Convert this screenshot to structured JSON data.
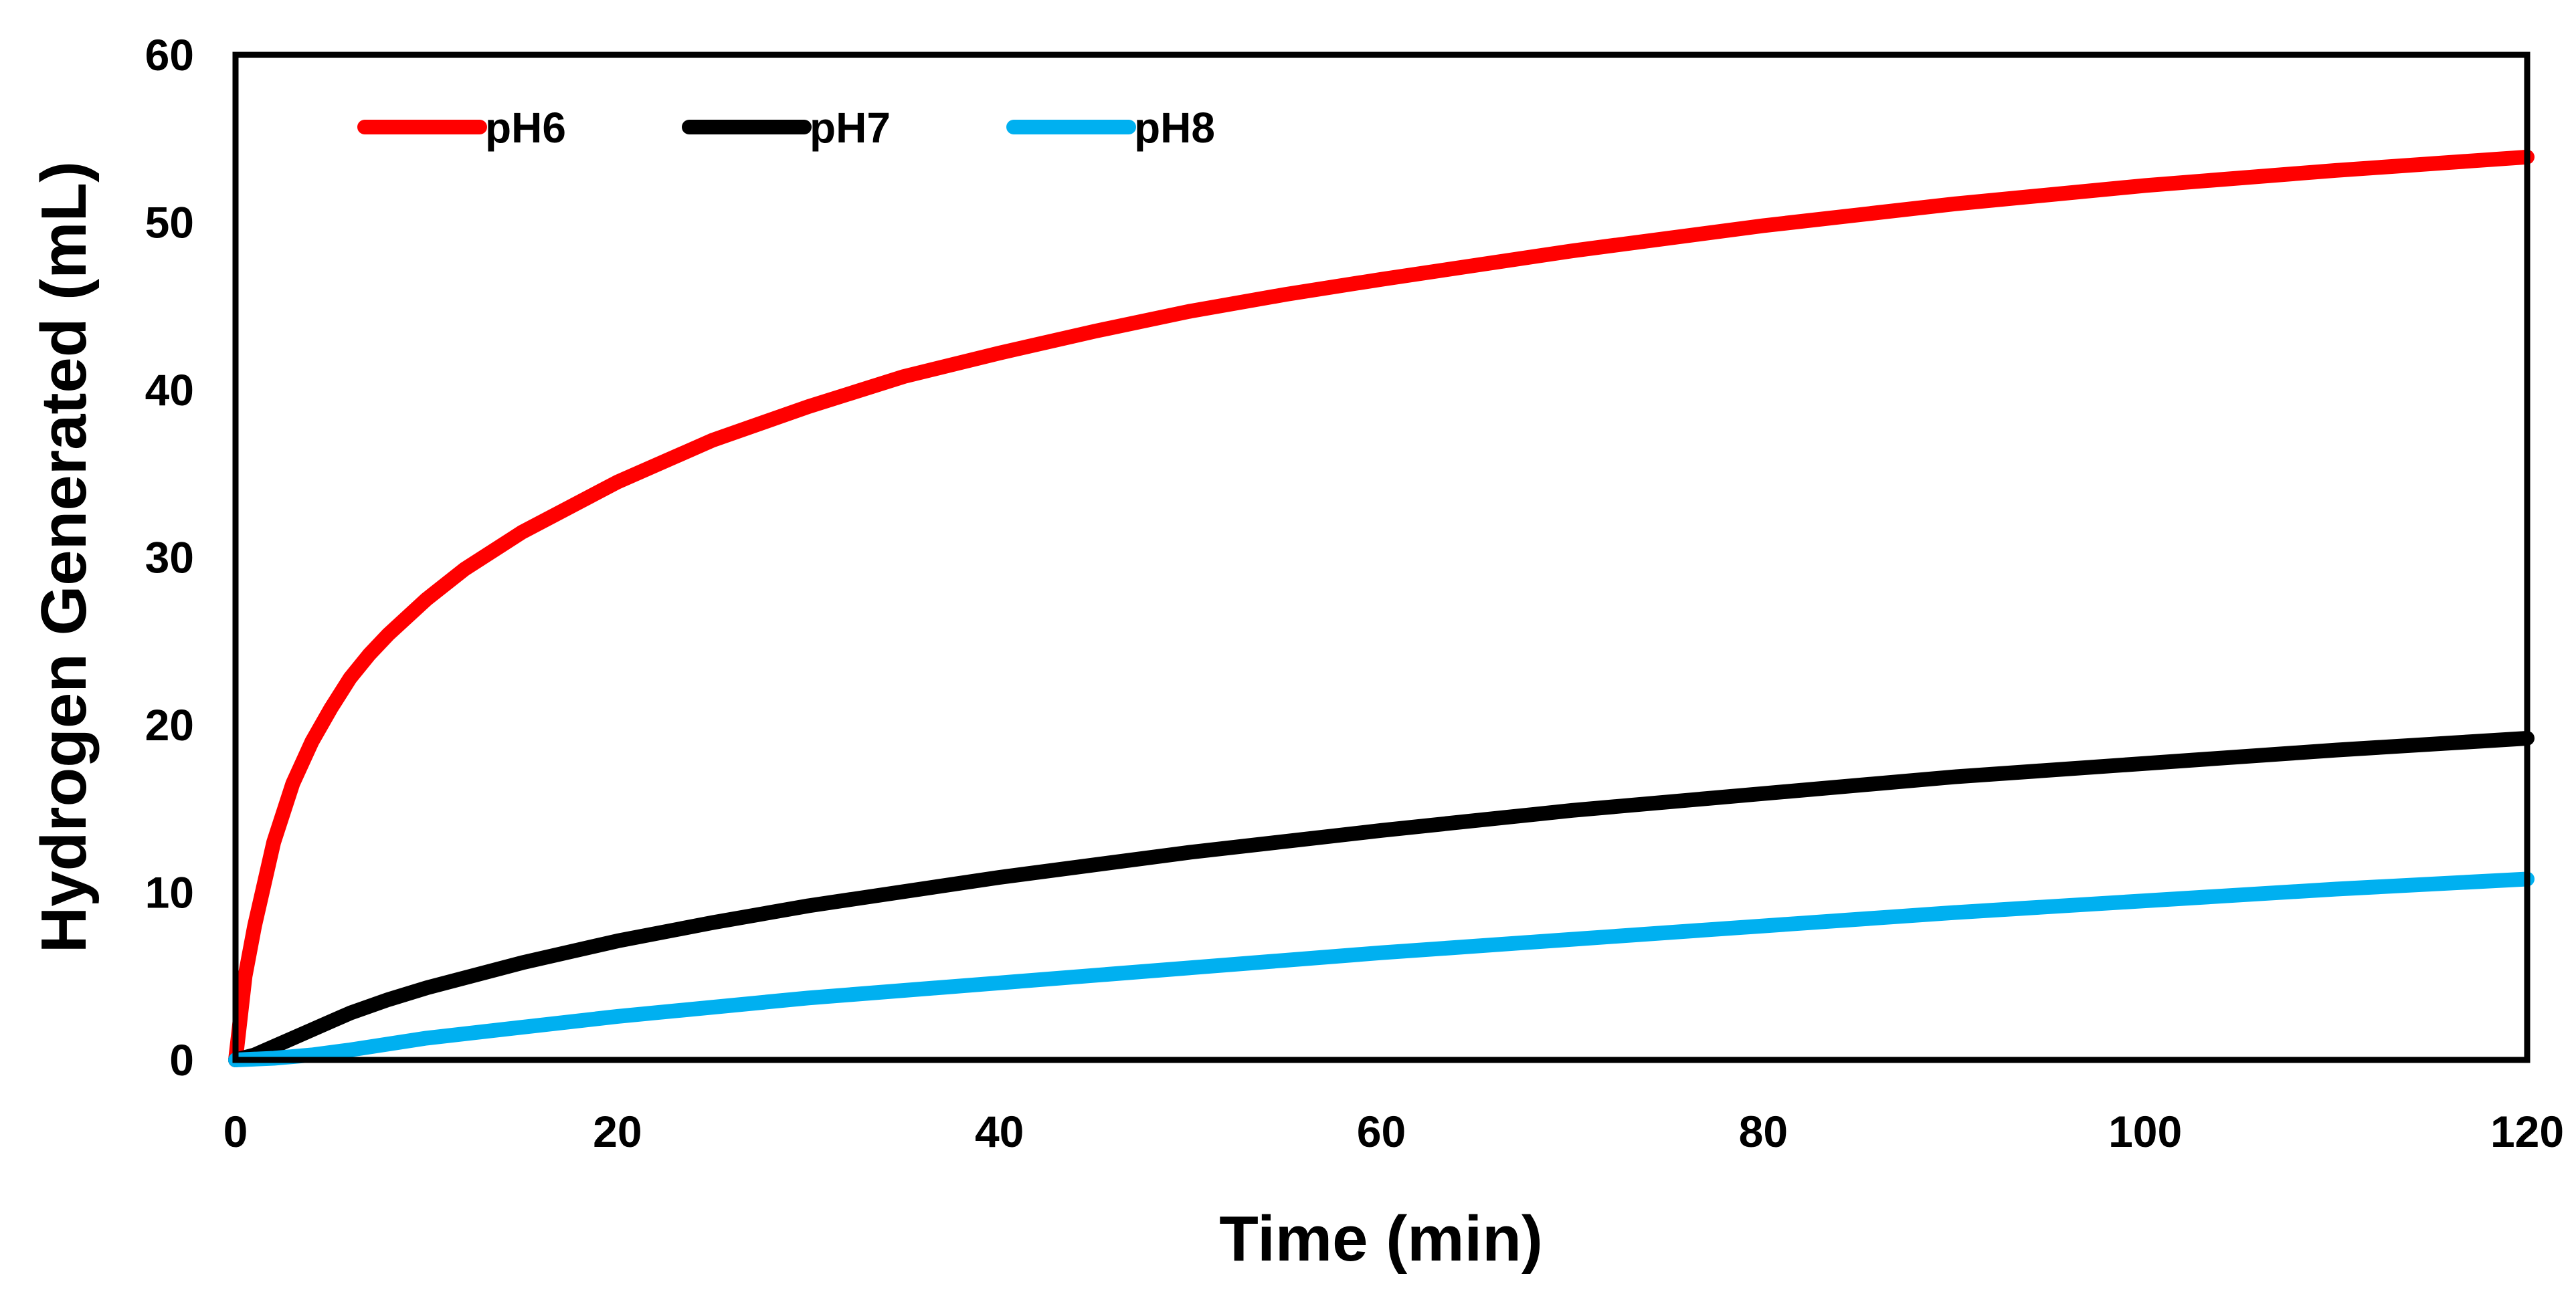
{
  "chart_data": {
    "type": "line",
    "title": "",
    "xlabel": "Time (min)",
    "ylabel": "Hydrogen Generated (mL)",
    "xlim": [
      0,
      120
    ],
    "ylim": [
      0,
      60
    ],
    "x_ticks": [
      0,
      20,
      40,
      60,
      80,
      100,
      120
    ],
    "y_ticks": [
      0,
      10,
      20,
      30,
      40,
      50,
      60
    ],
    "grid": false,
    "legend_position": "top-left",
    "series": [
      {
        "name": "pH6",
        "color": "#ff0000",
        "x": [
          0,
          0.5,
          1,
          2,
          3,
          4,
          5,
          6,
          7,
          8,
          10,
          12,
          15,
          20,
          25,
          30,
          35,
          40,
          45,
          50,
          55,
          60,
          70,
          80,
          90,
          100,
          110,
          120
        ],
        "y": [
          0,
          5,
          8,
          13,
          16.5,
          19,
          21,
          22.8,
          24.2,
          25.4,
          27.5,
          29.3,
          31.5,
          34.5,
          37,
          39,
          40.8,
          42.2,
          43.5,
          44.7,
          45.7,
          46.6,
          48.3,
          49.8,
          51.1,
          52.2,
          53.1,
          53.9
        ]
      },
      {
        "name": "pH7",
        "color": "#000000",
        "x": [
          0,
          1,
          2,
          4,
          6,
          8,
          10,
          15,
          20,
          25,
          30,
          40,
          50,
          60,
          70,
          80,
          90,
          100,
          110,
          120
        ],
        "y": [
          0,
          0.3,
          0.8,
          1.8,
          2.8,
          3.6,
          4.3,
          5.8,
          7.1,
          8.2,
          9.2,
          10.9,
          12.4,
          13.7,
          14.9,
          15.9,
          16.9,
          17.7,
          18.5,
          19.2
        ]
      },
      {
        "name": "pH8",
        "color": "#00b0f0",
        "x": [
          0,
          2,
          4,
          6,
          10,
          20,
          30,
          40,
          50,
          60,
          70,
          80,
          90,
          100,
          110,
          120
        ],
        "y": [
          0,
          0.1,
          0.3,
          0.6,
          1.3,
          2.6,
          3.7,
          4.6,
          5.5,
          6.4,
          7.2,
          8.0,
          8.8,
          9.5,
          10.2,
          10.8
        ]
      }
    ]
  }
}
